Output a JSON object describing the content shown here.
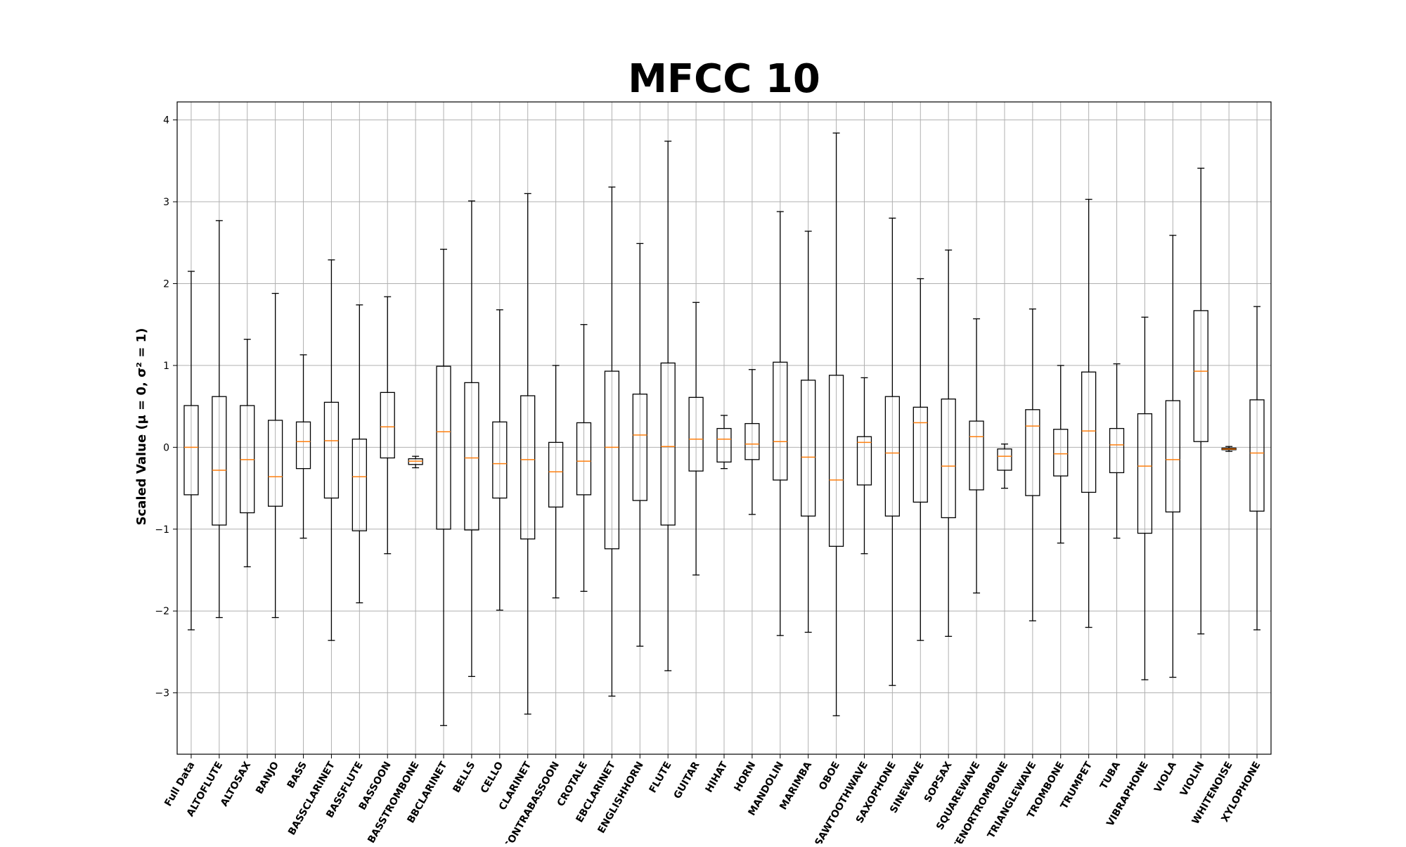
{
  "chart_data": {
    "type": "box",
    "title": "MFCC 10",
    "ylabel": "Scaled Value (μ = 0, σ² = 1)",
    "xlabel": "",
    "ylim": [
      -3.75,
      4.22
    ],
    "yticks": [
      4,
      3,
      2,
      1,
      0,
      -1,
      -2,
      -3
    ],
    "ytick_labels": [
      "4",
      "3",
      "2",
      "1",
      "0",
      "−1",
      "−2",
      "−3"
    ],
    "grid": true,
    "box_color": "#000000",
    "median_color": "#ff7f0e",
    "grid_color": "#b0b0b0",
    "categories": [
      "Full Data",
      "ALTOFLUTE",
      "ALTOSAX",
      "BANJO",
      "BASS",
      "BASSCLARINET",
      "BASSFLUTE",
      "BASSOON",
      "BASSTROMBONE",
      "BBCLARINET",
      "BELLS",
      "CELLO",
      "CLARINET",
      "CONTRABASSOON",
      "CROTALE",
      "EBCLARINET",
      "ENGLISHHORN",
      "FLUTE",
      "GUITAR",
      "HIHAT",
      "HORN",
      "MANDOLIN",
      "MARIMBA",
      "OBOE",
      "SAWTOOTHWAVE",
      "SAXOPHONE",
      "SINEWAVE",
      "SOPSAX",
      "SQUAREWAVE",
      "TENORTROMBONE",
      "TRIANGLEWAVE",
      "TROMBONE",
      "TRUMPET",
      "TUBA",
      "VIBRAPHONE",
      "VIOLA",
      "VIOLIN",
      "WHITENOISE",
      "XYLOPHONE"
    ],
    "boxes": [
      {
        "whislo": -2.23,
        "q1": -0.58,
        "med": 0.0,
        "q3": 0.51,
        "whishi": 2.15
      },
      {
        "whislo": -2.08,
        "q1": -0.95,
        "med": -0.28,
        "q3": 0.62,
        "whishi": 2.77
      },
      {
        "whislo": -1.46,
        "q1": -0.8,
        "med": -0.15,
        "q3": 0.51,
        "whishi": 1.32
      },
      {
        "whislo": -2.08,
        "q1": -0.72,
        "med": -0.36,
        "q3": 0.33,
        "whishi": 1.88
      },
      {
        "whislo": -1.11,
        "q1": -0.26,
        "med": 0.07,
        "q3": 0.31,
        "whishi": 1.13
      },
      {
        "whislo": -2.36,
        "q1": -0.62,
        "med": 0.08,
        "q3": 0.55,
        "whishi": 2.29
      },
      {
        "whislo": -1.9,
        "q1": -1.02,
        "med": -0.36,
        "q3": 0.1,
        "whishi": 1.74
      },
      {
        "whislo": -1.3,
        "q1": -0.13,
        "med": 0.25,
        "q3": 0.67,
        "whishi": 1.84
      },
      {
        "whislo": -0.25,
        "q1": -0.21,
        "med": -0.17,
        "q3": -0.14,
        "whishi": -0.11
      },
      {
        "whislo": -3.4,
        "q1": -1.0,
        "med": 0.19,
        "q3": 0.99,
        "whishi": 2.42
      },
      {
        "whislo": -2.8,
        "q1": -1.01,
        "med": -0.13,
        "q3": 0.79,
        "whishi": 3.01
      },
      {
        "whislo": -1.99,
        "q1": -0.62,
        "med": -0.2,
        "q3": 0.31,
        "whishi": 1.68
      },
      {
        "whislo": -3.26,
        "q1": -1.12,
        "med": -0.15,
        "q3": 0.63,
        "whishi": 3.1
      },
      {
        "whislo": -1.84,
        "q1": -0.73,
        "med": -0.3,
        "q3": 0.06,
        "whishi": 1.0
      },
      {
        "whislo": -1.76,
        "q1": -0.58,
        "med": -0.17,
        "q3": 0.3,
        "whishi": 1.5
      },
      {
        "whislo": -3.04,
        "q1": -1.24,
        "med": 0.0,
        "q3": 0.93,
        "whishi": 3.18
      },
      {
        "whislo": -2.43,
        "q1": -0.65,
        "med": 0.15,
        "q3": 0.65,
        "whishi": 2.49
      },
      {
        "whislo": -2.73,
        "q1": -0.95,
        "med": 0.01,
        "q3": 1.03,
        "whishi": 3.74
      },
      {
        "whislo": -1.56,
        "q1": -0.29,
        "med": 0.1,
        "q3": 0.61,
        "whishi": 1.77
      },
      {
        "whislo": -0.26,
        "q1": -0.18,
        "med": 0.1,
        "q3": 0.23,
        "whishi": 0.39
      },
      {
        "whislo": -0.82,
        "q1": -0.15,
        "med": 0.04,
        "q3": 0.29,
        "whishi": 0.95
      },
      {
        "whislo": -2.3,
        "q1": -0.4,
        "med": 0.07,
        "q3": 1.04,
        "whishi": 2.88
      },
      {
        "whislo": -2.26,
        "q1": -0.84,
        "med": -0.12,
        "q3": 0.82,
        "whishi": 2.64
      },
      {
        "whislo": -3.28,
        "q1": -1.21,
        "med": -0.4,
        "q3": 0.88,
        "whishi": 3.84
      },
      {
        "whislo": -1.3,
        "q1": -0.46,
        "med": 0.06,
        "q3": 0.13,
        "whishi": 0.85
      },
      {
        "whislo": -2.91,
        "q1": -0.84,
        "med": -0.07,
        "q3": 0.62,
        "whishi": 2.8
      },
      {
        "whislo": -2.36,
        "q1": -0.67,
        "med": 0.3,
        "q3": 0.49,
        "whishi": 2.06
      },
      {
        "whislo": -2.31,
        "q1": -0.86,
        "med": -0.23,
        "q3": 0.59,
        "whishi": 2.41
      },
      {
        "whislo": -1.78,
        "q1": -0.52,
        "med": 0.13,
        "q3": 0.32,
        "whishi": 1.57
      },
      {
        "whislo": -0.5,
        "q1": -0.28,
        "med": -0.11,
        "q3": -0.02,
        "whishi": 0.04
      },
      {
        "whislo": -2.12,
        "q1": -0.59,
        "med": 0.26,
        "q3": 0.46,
        "whishi": 1.69
      },
      {
        "whislo": -1.17,
        "q1": -0.35,
        "med": -0.08,
        "q3": 0.22,
        "whishi": 1.0
      },
      {
        "whislo": -2.2,
        "q1": -0.55,
        "med": 0.2,
        "q3": 0.92,
        "whishi": 3.03
      },
      {
        "whislo": -1.11,
        "q1": -0.31,
        "med": 0.03,
        "q3": 0.23,
        "whishi": 1.02
      },
      {
        "whislo": -2.84,
        "q1": -1.05,
        "med": -0.23,
        "q3": 0.41,
        "whishi": 1.59
      },
      {
        "whislo": -2.81,
        "q1": -0.79,
        "med": -0.15,
        "q3": 0.57,
        "whishi": 2.59
      },
      {
        "whislo": -2.28,
        "q1": 0.07,
        "med": 0.93,
        "q3": 1.67,
        "whishi": 3.41
      },
      {
        "whislo": -0.05,
        "q1": -0.03,
        "med": -0.02,
        "q3": -0.01,
        "whishi": 0.01
      },
      {
        "whislo": -2.23,
        "q1": -0.78,
        "med": -0.07,
        "q3": 0.58,
        "whishi": 1.72
      }
    ]
  }
}
